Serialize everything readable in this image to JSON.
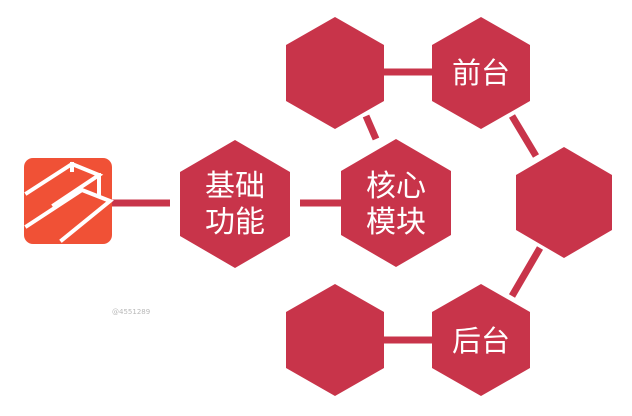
{
  "colors": {
    "node": "#c8344a",
    "edge": "#c8344a",
    "logo_bg": "#f05136",
    "logo_line": "#ffffff",
    "background": "#ffffff"
  },
  "nodes": {
    "basic": {
      "line1": "基础",
      "line2": "功能"
    },
    "core": {
      "line1": "核心",
      "line2": "模块"
    },
    "frontend": {
      "label": "前台"
    },
    "backend": {
      "label": "后台"
    }
  },
  "logo": {
    "icon": "laravel-logo-icon"
  },
  "watermark": {
    "text": "@4551289"
  }
}
